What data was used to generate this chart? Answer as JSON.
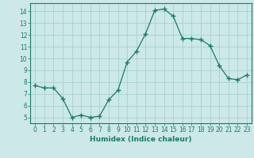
{
  "x": [
    0,
    1,
    2,
    3,
    4,
    5,
    6,
    7,
    8,
    9,
    10,
    11,
    12,
    13,
    14,
    15,
    16,
    17,
    18,
    19,
    20,
    21,
    22,
    23
  ],
  "y": [
    7.7,
    7.5,
    7.5,
    6.6,
    5.0,
    5.2,
    5.0,
    5.1,
    6.5,
    7.3,
    9.7,
    10.6,
    12.1,
    14.1,
    14.2,
    13.6,
    11.7,
    11.7,
    11.6,
    11.1,
    9.4,
    8.3,
    8.2,
    8.6
  ],
  "line_color": "#1a7a6a",
  "marker": "+",
  "marker_size": 4,
  "bg_color": "#cce8e8",
  "grid_color": "#aacfcf",
  "xlabel": "Humidex (Indice chaleur)",
  "ylim": [
    4.5,
    14.7
  ],
  "xlim": [
    -0.5,
    23.5
  ],
  "yticks": [
    5,
    6,
    7,
    8,
    9,
    10,
    11,
    12,
    13,
    14
  ],
  "xticks": [
    0,
    1,
    2,
    3,
    4,
    5,
    6,
    7,
    8,
    9,
    10,
    11,
    12,
    13,
    14,
    15,
    16,
    17,
    18,
    19,
    20,
    21,
    22,
    23
  ],
  "label_fontsize": 6.5,
  "tick_fontsize": 5.5
}
